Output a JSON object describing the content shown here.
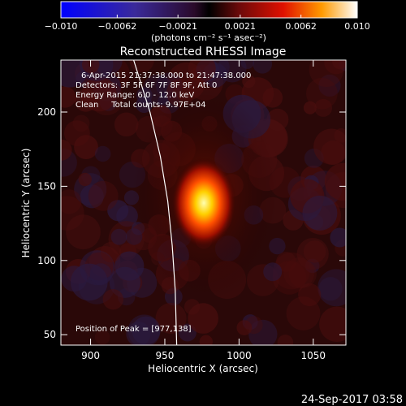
{
  "chart_data": {
    "type": "heatmap",
    "title": "Reconstructed RHESSI Image",
    "xlabel": "Heliocentric X (arcsec)",
    "ylabel": "Heliocentric Y (arcsec)",
    "xlim": [
      880,
      1072
    ],
    "ylim": [
      43,
      235
    ],
    "x_ticks": [
      900,
      950,
      1000,
      1050
    ],
    "y_ticks": [
      50,
      100,
      150,
      200
    ],
    "colorbar": {
      "min": -0.01,
      "max": 0.01,
      "ticks": [
        "-0.010",
        "-0.0062",
        "-0.0021",
        "0.0021",
        "0.0062",
        "0.010"
      ],
      "unit_label": "(photons cm⁻² s⁻¹ asec⁻²)"
    },
    "annotations": [
      "6-Apr-2015 21:37:38.000 to 21:47:38.000",
      "Detectors: 3F 5F 6F 7F 8F 9F, Att 0",
      "Energy Range: 6.0 - 12.0 keV",
      "Clean     Total counts: 9.97E+04"
    ],
    "peak_label": "Position of Peak = [977,138]",
    "peak": {
      "x": 977,
      "y": 138
    },
    "limb_curve": [
      [
        929,
        235
      ],
      [
        940,
        200
      ],
      [
        947,
        170
      ],
      [
        952,
        140
      ],
      [
        955,
        110
      ],
      [
        957,
        80
      ],
      [
        958,
        43
      ]
    ],
    "footer": "24-Sep-2017 03:58"
  }
}
